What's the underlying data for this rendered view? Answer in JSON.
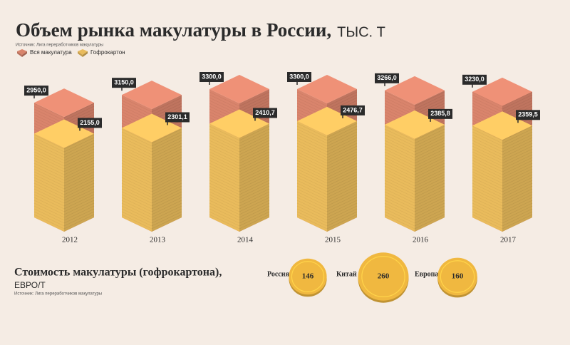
{
  "chart_data": [
    {
      "type": "isobar",
      "title": "Объем рынка макулатуры в России,",
      "unit": "ТЫС. Т",
      "source": "Источник: Лига переработчиков макулатуры",
      "categories": [
        "2012",
        "2013",
        "2014",
        "2015",
        "2016",
        "2017"
      ],
      "series": [
        {
          "name": "Вся макулатура",
          "color": "#d9846c",
          "values": [
            2950,
            3150,
            3300,
            3300,
            3266,
            3230
          ],
          "value_labels": [
            "2950,0",
            "3150,0",
            "3300,0",
            "3300,0",
            "3266,0",
            "3230,0"
          ]
        },
        {
          "name": "Гофрокартон",
          "color": "#e9bb5c",
          "values": [
            2155,
            2301.1,
            2410.7,
            2476.7,
            2385.8,
            2359.5
          ],
          "value_labels": [
            "2155,0",
            "2301,1",
            "2410,7",
            "2476,7",
            "2385,8",
            "2359,5"
          ]
        }
      ]
    },
    {
      "type": "bubble",
      "title": "Стоимость макулатуры (гофрокартона),",
      "unit": "ЕВРО/Т",
      "source": "Источник: Лига переработчиков макулатуры",
      "categories": [
        "Россия",
        "Китай",
        "Европа"
      ],
      "values": [
        146,
        260,
        160
      ],
      "color": "#f0b840"
    }
  ]
}
